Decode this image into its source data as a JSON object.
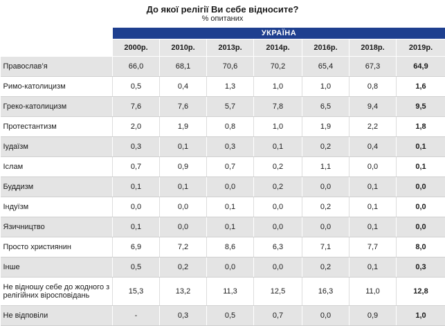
{
  "header": {
    "title": "До якої релігії Ви себе відносите?",
    "subtitle": "% опитаних"
  },
  "table": {
    "region": "УКРАЇНА",
    "years": [
      "2000р.",
      "2010р.",
      "2013р.",
      "2014р.",
      "2016р.",
      "2018р.",
      "2019р."
    ],
    "rows": [
      {
        "label": "Православ’я",
        "values": [
          "66,0",
          "68,1",
          "70,6",
          "70,2",
          "65,4",
          "67,3",
          "64,9"
        ]
      },
      {
        "label": "Римо-католицизм",
        "values": [
          "0,5",
          "0,4",
          "1,3",
          "1,0",
          "1,0",
          "0,8",
          "1,6"
        ]
      },
      {
        "label": "Греко-католицизм",
        "values": [
          "7,6",
          "7,6",
          "5,7",
          "7,8",
          "6,5",
          "9,4",
          "9,5"
        ]
      },
      {
        "label": "Протестантизм",
        "values": [
          "2,0",
          "1,9",
          "0,8",
          "1,0",
          "1,9",
          "2,2",
          "1,8"
        ]
      },
      {
        "label": "Іудаїзм",
        "values": [
          "0,3",
          "0,1",
          "0,3",
          "0,1",
          "0,2",
          "0,4",
          "0,1"
        ]
      },
      {
        "label": "Іслам",
        "values": [
          "0,7",
          "0,9",
          "0,7",
          "0,2",
          "1,1",
          "0,0",
          "0,1"
        ]
      },
      {
        "label": "Буддизм",
        "values": [
          "0,1",
          "0,1",
          "0,0",
          "0,2",
          "0,0",
          "0,1",
          "0,0"
        ]
      },
      {
        "label": "Індуїзм",
        "values": [
          "0,0",
          "0,0",
          "0,1",
          "0,0",
          "0,2",
          "0,1",
          "0,0"
        ]
      },
      {
        "label": "Язичництво",
        "values": [
          "0,1",
          "0,0",
          "0,1",
          "0,0",
          "0,0",
          "0,1",
          "0,0"
        ]
      },
      {
        "label": "Просто християнин",
        "values": [
          "6,9",
          "7,2",
          "8,6",
          "6,3",
          "7,1",
          "7,7",
          "8,0"
        ]
      },
      {
        "label": "Інше",
        "values": [
          "0,5",
          "0,2",
          "0,0",
          "0,0",
          "0,2",
          "0,1",
          "0,3"
        ]
      },
      {
        "label": "Не відношу себе до жодного з релігійних віросповідань",
        "values": [
          "15,3",
          "13,2",
          "11,3",
          "12,5",
          "16,3",
          "11,0",
          "12,8"
        ]
      },
      {
        "label": "Не відповіли",
        "values": [
          "-",
          "0,3",
          "0,5",
          "0,7",
          "0,0",
          "0,9",
          "1,0"
        ]
      }
    ]
  },
  "colors": {
    "header_band": "#1e3f8f",
    "row_shade": "#e4e4e4",
    "year_row": "#e6e6e6"
  }
}
